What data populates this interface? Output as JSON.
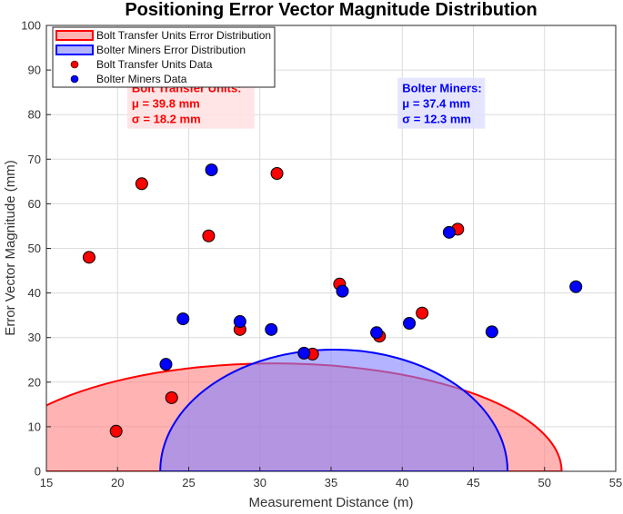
{
  "chart_data": {
    "type": "scatter",
    "title": "Positioning Error Vector Magnitude Distribution",
    "xlabel": "Measurement Distance (m)",
    "ylabel": "Error Vector Magnitude (mm)",
    "xlim": [
      15,
      55
    ],
    "ylim": [
      0,
      100
    ],
    "xticks": [
      "15",
      "20",
      "25",
      "30",
      "35",
      "40",
      "45",
      "50",
      "55"
    ],
    "yticks": [
      "0",
      "10",
      "20",
      "30",
      "40",
      "50",
      "60",
      "70",
      "80",
      "90",
      "100"
    ],
    "grid": true,
    "legend_position": "top-left",
    "legend": [
      "Bolt Transfer Units Error Distribution",
      "Bolter Miners Error Distribution",
      "Bolt Transfer Units Data",
      "Bolter Miners Data"
    ],
    "distributions": [
      {
        "name": "Bolt Transfer Units Error Distribution",
        "center_x": 31,
        "half_width": 20.2,
        "peak": 24.2,
        "color": "#ff0000",
        "fill": "#ff8080"
      },
      {
        "name": "Bolter Miners Error Distribution",
        "center_x": 35.2,
        "half_width": 12.2,
        "peak": 27.3,
        "color": "#0000ff",
        "fill": "#8080ff"
      }
    ],
    "series": [
      {
        "name": "Bolt Transfer Units Data",
        "color": "#ff0000",
        "points": [
          [
            18.0,
            48.0
          ],
          [
            19.9,
            9.0
          ],
          [
            21.7,
            64.5
          ],
          [
            23.8,
            16.5
          ],
          [
            26.4,
            52.8
          ],
          [
            28.6,
            31.8
          ],
          [
            31.2,
            66.8
          ],
          [
            33.7,
            26.3
          ],
          [
            35.6,
            42.0
          ],
          [
            38.4,
            30.3
          ],
          [
            41.4,
            35.5
          ],
          [
            43.9,
            54.3
          ]
        ]
      },
      {
        "name": "Bolter Miners Data",
        "color": "#0000ff",
        "points": [
          [
            23.4,
            24.0
          ],
          [
            24.6,
            34.2
          ],
          [
            26.6,
            67.6
          ],
          [
            28.6,
            33.6
          ],
          [
            30.8,
            31.8
          ],
          [
            33.1,
            26.5
          ],
          [
            35.8,
            40.4
          ],
          [
            38.2,
            31.1
          ],
          [
            40.5,
            33.2
          ],
          [
            43.3,
            53.6
          ],
          [
            46.3,
            31.3
          ],
          [
            52.2,
            41.4
          ]
        ]
      }
    ],
    "annotations": [
      {
        "lines": [
          "Bolt Transfer Units:",
          "μ = 39.8 mm",
          "σ = 18.2 mm"
        ],
        "x": 21,
        "y": 85,
        "color": "#ff0000",
        "bg": "#ffe0e0"
      },
      {
        "lines": [
          "Bolter Miners:",
          "μ = 37.4 mm",
          "σ = 12.3 mm"
        ],
        "x": 40,
        "y": 85,
        "color": "#0000ff",
        "bg": "#e0e0ff"
      }
    ]
  }
}
